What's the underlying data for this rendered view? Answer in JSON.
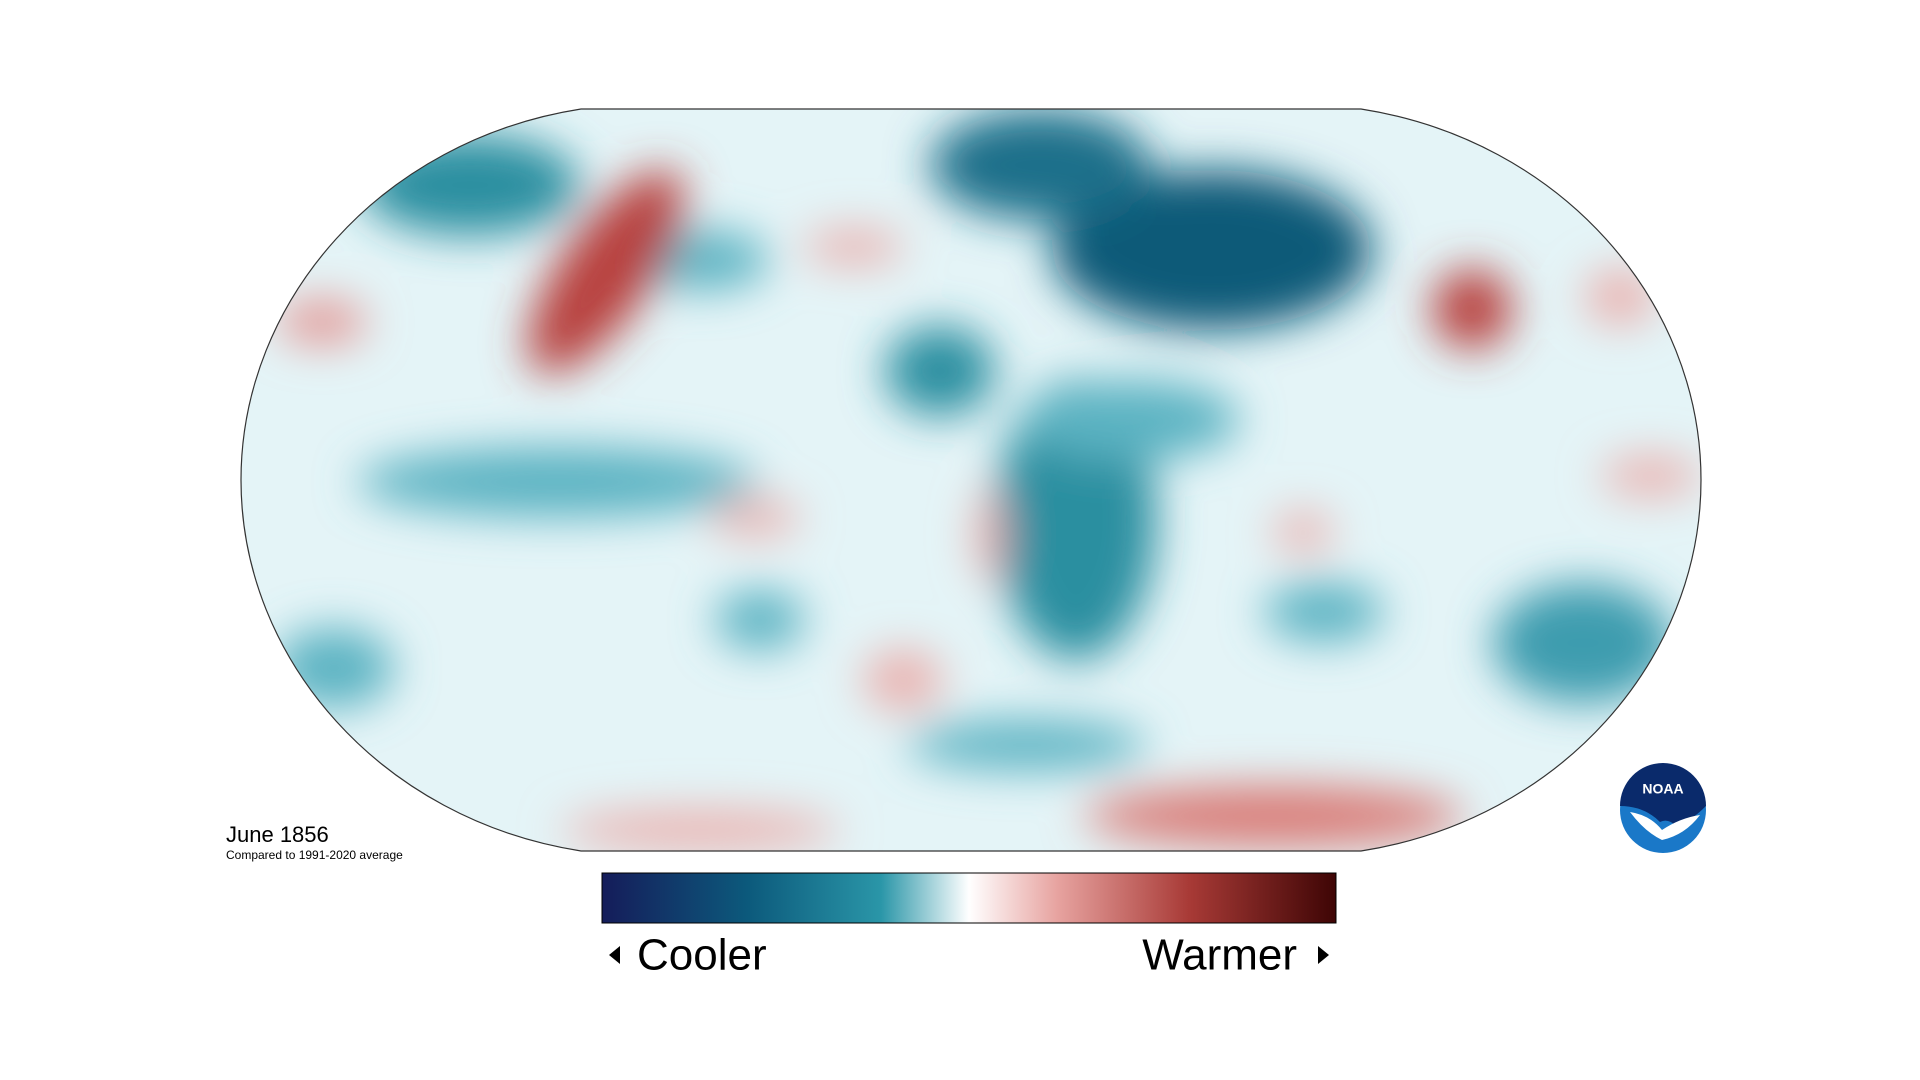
{
  "map": {
    "title": "June 1856",
    "subtitle": "Compared to 1991-2020 average"
  },
  "legend": {
    "low_label": "Cooler",
    "high_label": "Warmer"
  },
  "logo": {
    "text": "NOAA"
  }
}
